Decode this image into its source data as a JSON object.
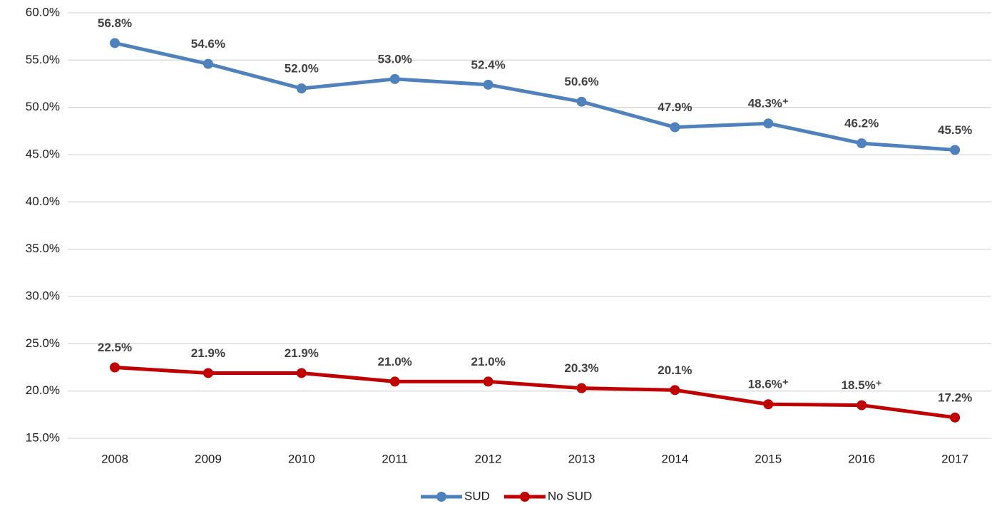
{
  "chart_data": {
    "type": "line",
    "categories": [
      "2008",
      "2009",
      "2010",
      "2011",
      "2012",
      "2013",
      "2014",
      "2015",
      "2016",
      "2017"
    ],
    "series": [
      {
        "name": "SUD",
        "color": "#4f81bd",
        "values": [
          56.8,
          54.6,
          52.0,
          53.0,
          52.4,
          50.6,
          47.9,
          48.3,
          46.2,
          45.5
        ],
        "value_labels": [
          "56.8%",
          "54.6%",
          "52.0%",
          "53.0%",
          "52.4%",
          "50.6%",
          "47.9%",
          "48.3%⁺",
          "46.2%",
          "45.5%"
        ]
      },
      {
        "name": "No SUD",
        "color": "#c00000",
        "values": [
          22.5,
          21.9,
          21.9,
          21.0,
          21.0,
          20.3,
          20.1,
          18.6,
          18.5,
          17.2
        ],
        "value_labels": [
          "22.5%",
          "21.9%",
          "21.9%",
          "21.0%",
          "21.0%",
          "20.3%",
          "20.1%",
          "18.6%⁺",
          "18.5%⁺",
          "17.2%"
        ]
      }
    ],
    "ylim": [
      15,
      60
    ],
    "yticks": [
      {
        "value": 15,
        "label": "15.0%"
      },
      {
        "value": 20,
        "label": "20.0%"
      },
      {
        "value": 25,
        "label": "25.0%"
      },
      {
        "value": 30,
        "label": "30.0%"
      },
      {
        "value": 35,
        "label": "35.0%"
      },
      {
        "value": 40,
        "label": "40.0%"
      },
      {
        "value": 45,
        "label": "45.0%"
      },
      {
        "value": 50,
        "label": "50.0%"
      },
      {
        "value": 55,
        "label": "55.0%"
      },
      {
        "value": 60,
        "label": "60.0%"
      }
    ],
    "grid": true,
    "legend": "bottom"
  }
}
